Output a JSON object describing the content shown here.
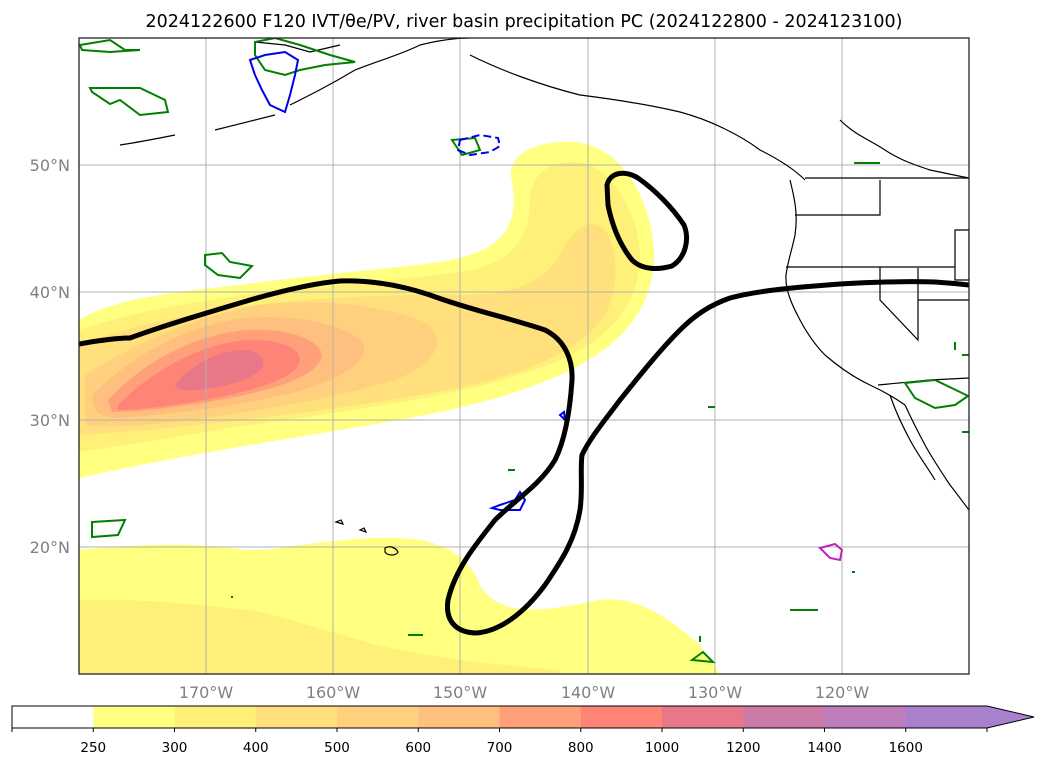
{
  "title": "2024122600 F120 IVT/θe/PV, river basin precipitation PC (2024122800 - 2024123100)",
  "map": {
    "projection": "plate-carree",
    "lon_range": [
      -180,
      -110
    ],
    "lat_range": [
      10,
      60
    ],
    "lon_ticks": [
      {
        "value": -170,
        "label": "170°W"
      },
      {
        "value": -160,
        "label": "160°W"
      },
      {
        "value": -150,
        "label": "150°W"
      },
      {
        "value": -140,
        "label": "140°W"
      },
      {
        "value": -130,
        "label": "130°W"
      },
      {
        "value": -120,
        "label": "120°W"
      }
    ],
    "lat_ticks": [
      {
        "value": 20,
        "label": "20°N"
      },
      {
        "value": 30,
        "label": "30°N"
      },
      {
        "value": 40,
        "label": "40°N"
      },
      {
        "value": 50,
        "label": "50°N"
      }
    ],
    "grid": true,
    "layers": {
      "ivt_fill": "IVT shading",
      "theta_e": "thick black contour",
      "pv_positive": "green contours",
      "pv_negative": "blue contours",
      "precip": "magenta contour"
    }
  },
  "colorbar": {
    "levels": [
      "250",
      "300",
      "400",
      "500",
      "600",
      "700",
      "800",
      "1000",
      "1200",
      "1400",
      "1600"
    ],
    "colors": [
      "#ffffff",
      "#ffff80",
      "#fff07a",
      "#ffe07c",
      "#ffd07e",
      "#ffbf7e",
      "#ffa07a",
      "#ff8478",
      "#e87888",
      "#cc7aa6",
      "#be7ebe",
      "#a880cc"
    ],
    "extend": "max"
  },
  "colors": {
    "theta_e": "#000000",
    "pv_green": "#008000",
    "pv_blue": "#0000ee",
    "precip_magenta": "#c020c0",
    "coast": "#000000",
    "grid": "#b0b0b0"
  }
}
